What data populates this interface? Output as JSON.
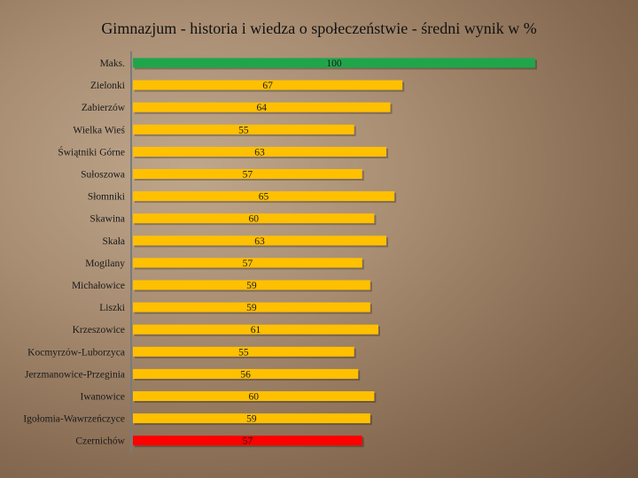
{
  "chart_data": {
    "type": "bar",
    "orientation": "horizontal",
    "title": "Gimnazjum - historia i wiedza o społeczeństwie - średni wynik w %",
    "xlabel": "",
    "ylabel": "",
    "xlim": [
      0,
      100
    ],
    "grid": false,
    "legend": "none",
    "categories": [
      "Maks.",
      "Zielonki",
      "Zabierzów",
      "Wielka Wieś",
      "Świątniki Górne",
      "Sułoszowa",
      "Słomniki",
      "Skawina",
      "Skała",
      "Mogilany",
      "Michałowice",
      "Liszki",
      "Krzeszowice",
      "Kocmyrzów-Luborzyca",
      "Jerzmanowice-Przeginia",
      "Iwanowice",
      "Igołomia-Wawrzeńczyce",
      "Czernichów"
    ],
    "values": [
      100,
      67,
      64,
      55,
      63,
      57,
      65,
      60,
      63,
      57,
      59,
      59,
      61,
      55,
      56,
      60,
      59,
      57
    ],
    "value_labels": [
      "100",
      "67",
      "64",
      "55",
      "63",
      "57",
      "65",
      "60",
      "63",
      "57",
      "59",
      "59",
      "61",
      "55",
      "56",
      "60",
      "59",
      "57"
    ],
    "colors": {
      "max": "#1fa64a",
      "default": "#ffc000",
      "highlight": "#ff0000"
    },
    "bar_color_keys": [
      "max",
      "default",
      "default",
      "default",
      "default",
      "default",
      "default",
      "default",
      "default",
      "default",
      "default",
      "default",
      "default",
      "default",
      "default",
      "default",
      "default",
      "highlight"
    ]
  }
}
